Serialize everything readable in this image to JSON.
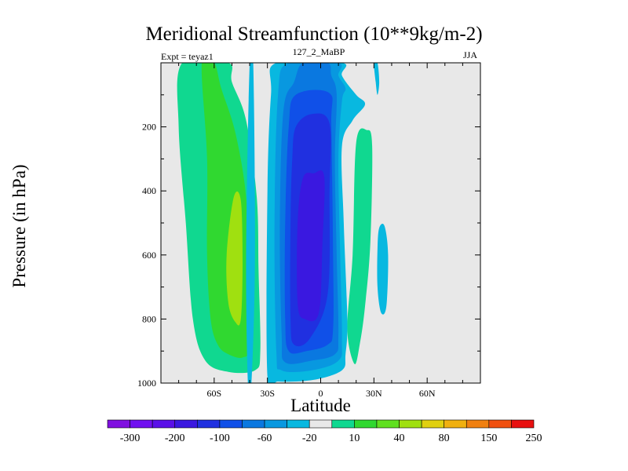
{
  "chart_data": {
    "type": "contour",
    "title": "Meridional Streamfunction (10**9kg/m-2)",
    "left_label": "Expt = teyaz1",
    "center_label": "127_2_MaBP",
    "right_label": "JJA",
    "xlabel": "Latitude",
    "ylabel": "Pressure (in hPa)",
    "xlim": [
      -90,
      90
    ],
    "ylim": [
      1000,
      0
    ],
    "x_ticks": [
      {
        "value": -60,
        "label": "60S"
      },
      {
        "value": -30,
        "label": "30S"
      },
      {
        "value": 0,
        "label": "0"
      },
      {
        "value": 30,
        "label": "30N"
      },
      {
        "value": 60,
        "label": "60N"
      }
    ],
    "y_ticks": [
      {
        "value": 200,
        "label": "200"
      },
      {
        "value": 400,
        "label": "400"
      },
      {
        "value": 600,
        "label": "600"
      },
      {
        "value": 800,
        "label": "800"
      },
      {
        "value": 1000,
        "label": "1000"
      }
    ],
    "colorbar": {
      "colors": [
        "#8010e0",
        "#7010f0",
        "#5a10e8",
        "#3a18e0",
        "#2030e0",
        "#1050e8",
        "#0a78e0",
        "#0898e0",
        "#08b8e0",
        "#e8e8e8",
        "#10d890",
        "#30d830",
        "#60e020",
        "#a0e010",
        "#e0d010",
        "#f0b010",
        "#f08010",
        "#f05010",
        "#e81010"
      ],
      "labels": [
        "-300",
        "-200",
        "-100",
        "-60",
        "-20",
        "10",
        "40",
        "80",
        "150",
        "250"
      ]
    },
    "regions": [
      {
        "level": "10",
        "color": "#10d890",
        "points": [
          [
            -78,
            0
          ],
          [
            -52,
            0
          ],
          [
            -50,
            60
          ],
          [
            -42,
            180
          ],
          [
            -36,
            420
          ],
          [
            -35,
            650
          ],
          [
            -34,
            900
          ],
          [
            -37,
            960
          ],
          [
            -52,
            965
          ],
          [
            -65,
            930
          ],
          [
            -72,
            800
          ],
          [
            -76,
            500
          ],
          [
            -80,
            200
          ]
        ]
      },
      {
        "level": "40",
        "color": "#30d830",
        "points": [
          [
            -67,
            0
          ],
          [
            -60,
            0
          ],
          [
            -56,
            80
          ],
          [
            -48,
            220
          ],
          [
            -42,
            420
          ],
          [
            -41,
            650
          ],
          [
            -40,
            880
          ],
          [
            -44,
            920
          ],
          [
            -52,
            910
          ],
          [
            -58,
            880
          ],
          [
            -62,
            800
          ],
          [
            -64,
            600
          ],
          [
            -64,
            300
          ]
        ]
      },
      {
        "level": "80",
        "color": "#a0e010",
        "points": [
          [
            -49,
            420
          ],
          [
            -45,
            430
          ],
          [
            -44,
            620
          ],
          [
            -45,
            800
          ],
          [
            -48,
            810
          ],
          [
            -52,
            750
          ],
          [
            -53,
            600
          ]
        ]
      },
      {
        "level": "10",
        "color": "#10d890",
        "points": [
          [
            20,
            250
          ],
          [
            26,
            210
          ],
          [
            29,
            260
          ],
          [
            28,
            560
          ],
          [
            25,
            760
          ],
          [
            22,
            880
          ],
          [
            19,
            940
          ],
          [
            15,
            830
          ],
          [
            18,
            600
          ]
        ]
      },
      {
        "level": "-20",
        "color": "#08b8e0",
        "points": [
          [
            -40,
            0
          ],
          [
            -38,
            0
          ],
          [
            -37,
            600
          ],
          [
            -39,
            1000
          ],
          [
            -41,
            1000
          ],
          [
            -42,
            600
          ]
        ]
      },
      {
        "level": "-20",
        "color": "#08b8e0",
        "points": [
          [
            -25,
            0
          ],
          [
            12,
            0
          ],
          [
            12,
            40
          ],
          [
            20,
            100
          ],
          [
            25,
            130
          ],
          [
            18,
            180
          ],
          [
            12,
            260
          ],
          [
            13,
            500
          ],
          [
            15,
            800
          ],
          [
            14,
            910
          ],
          [
            12,
            960
          ],
          [
            -4,
            990
          ],
          [
            -24,
            995
          ],
          [
            -30,
            980
          ],
          [
            -30,
            400
          ],
          [
            -28,
            100
          ]
        ]
      },
      {
        "level": "-60",
        "color": "#0898e0",
        "points": [
          [
            -18,
            0
          ],
          [
            10,
            0
          ],
          [
            10,
            40
          ],
          [
            14,
            80
          ],
          [
            12,
            120
          ],
          [
            10,
            300
          ],
          [
            11,
            600
          ],
          [
            12,
            860
          ],
          [
            10,
            930
          ],
          [
            -5,
            960
          ],
          [
            -22,
            960
          ],
          [
            -25,
            900
          ],
          [
            -26,
            500
          ],
          [
            -24,
            100
          ]
        ]
      },
      {
        "level": "-100",
        "color": "#0a78e0",
        "points": [
          [
            -10,
            0
          ],
          [
            4,
            0
          ],
          [
            6,
            40
          ],
          [
            9,
            100
          ],
          [
            8,
            300
          ],
          [
            9,
            600
          ],
          [
            10,
            850
          ],
          [
            8,
            910
          ],
          [
            -5,
            930
          ],
          [
            -20,
            935
          ],
          [
            -22,
            850
          ],
          [
            -23,
            500
          ],
          [
            -21,
            150
          ],
          [
            -15,
            60
          ]
        ]
      },
      {
        "level": "-200",
        "color": "#1050e8",
        "points": [
          [
            -14,
            100
          ],
          [
            5,
            95
          ],
          [
            6,
            200
          ],
          [
            7,
            600
          ],
          [
            7,
            830
          ],
          [
            4,
            880
          ],
          [
            -8,
            900
          ],
          [
            -18,
            900
          ],
          [
            -20,
            800
          ],
          [
            -20,
            500
          ],
          [
            -18,
            200
          ]
        ]
      },
      {
        "level": "-200",
        "color": "#2030e0",
        "points": [
          [
            -14,
            200
          ],
          [
            -5,
            160
          ],
          [
            5,
            190
          ],
          [
            5,
            400
          ],
          [
            4,
            720
          ],
          [
            -6,
            860
          ],
          [
            -15,
            880
          ],
          [
            -17,
            800
          ],
          [
            -17,
            500
          ],
          [
            -16,
            300
          ]
        ]
      },
      {
        "level": "-300",
        "color": "#3a18e0",
        "points": [
          [
            -10,
            360
          ],
          [
            -4,
            345
          ],
          [
            2,
            355
          ],
          [
            1,
            560
          ],
          [
            -1,
            780
          ],
          [
            -9,
            800
          ],
          [
            -13,
            750
          ],
          [
            -13,
            500
          ]
        ]
      },
      {
        "level": "-20",
        "color": "#08b8e0",
        "points": [
          [
            30,
            0
          ],
          [
            32,
            0
          ],
          [
            33,
            60
          ],
          [
            32,
            100
          ],
          [
            31,
            60
          ]
        ]
      },
      {
        "level": "-20",
        "color": "#08b8e0",
        "points": [
          [
            33,
            515
          ],
          [
            36,
            510
          ],
          [
            38,
            600
          ],
          [
            37,
            760
          ],
          [
            34,
            780
          ],
          [
            32,
            700
          ],
          [
            32,
            580
          ]
        ]
      }
    ]
  }
}
